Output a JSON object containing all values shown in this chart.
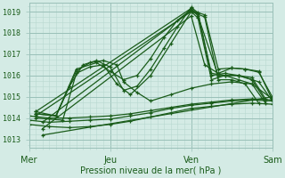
{
  "xlabel": "Pression niveau de la mer( hPa )",
  "bg_color": "#d4ebe5",
  "line_color": "#1a5c1a",
  "grid_minor_color": "#b8d8d0",
  "grid_major_color": "#9ac0b8",
  "tick_label_color": "#1a5c1a",
  "xlabel_color": "#1a5c1a",
  "ylim": [
    1012.6,
    1019.4
  ],
  "xlim": [
    0,
    72
  ],
  "yticks": [
    1013,
    1014,
    1015,
    1016,
    1017,
    1018,
    1019
  ],
  "xtick_positions": [
    0,
    24,
    48,
    72
  ],
  "xtick_labels": [
    "Mer",
    "Jeu",
    "Ven",
    "Sam"
  ],
  "series": [
    {
      "x": [
        0,
        6,
        12,
        18,
        24,
        30,
        36,
        42,
        48,
        54,
        60,
        66,
        72
      ],
      "y": [
        1014.1,
        1014.0,
        1014.0,
        1014.05,
        1014.1,
        1014.2,
        1014.35,
        1014.5,
        1014.65,
        1014.75,
        1014.85,
        1014.9,
        1014.85
      ]
    },
    {
      "x": [
        0,
        6,
        12,
        18,
        24,
        30,
        36,
        42,
        48,
        54,
        60,
        66,
        72
      ],
      "y": [
        1013.9,
        1013.8,
        1013.85,
        1013.9,
        1013.95,
        1014.1,
        1014.25,
        1014.45,
        1014.6,
        1014.7,
        1014.8,
        1014.85,
        1014.8
      ]
    },
    {
      "x": [
        0,
        6,
        12,
        18,
        24,
        30,
        36,
        42,
        48,
        54,
        60,
        66,
        72
      ],
      "y": [
        1013.7,
        1013.6,
        1013.55,
        1013.6,
        1013.7,
        1013.85,
        1014.05,
        1014.25,
        1014.45,
        1014.55,
        1014.65,
        1014.7,
        1014.65
      ]
    },
    {
      "x": [
        2,
        8,
        14,
        20,
        24,
        28,
        32,
        36,
        40,
        44,
        48,
        50,
        54,
        58,
        62,
        66,
        70
      ],
      "y": [
        1014.2,
        1014.1,
        1016.3,
        1016.6,
        1016.2,
        1015.8,
        1016.0,
        1016.8,
        1017.8,
        1018.6,
        1019.1,
        1018.9,
        1016.1,
        1016.0,
        1016.0,
        1015.9,
        1014.9
      ]
    },
    {
      "x": [
        2,
        8,
        12,
        16,
        20,
        24,
        28,
        32,
        36,
        40,
        44,
        48,
        50,
        54,
        58,
        62,
        66,
        70
      ],
      "y": [
        1014.3,
        1014.1,
        1015.5,
        1016.5,
        1016.7,
        1016.4,
        1015.3,
        1015.5,
        1016.3,
        1017.3,
        1018.3,
        1019.2,
        1018.95,
        1016.0,
        1016.1,
        1016.0,
        1015.8,
        1014.8
      ]
    },
    {
      "x": [
        2,
        48,
        50,
        56,
        62,
        68,
        72
      ],
      "y": [
        1014.3,
        1019.15,
        1018.8,
        1016.0,
        1016.0,
        1015.7,
        1014.8
      ]
    },
    {
      "x": [
        2,
        48,
        50,
        54,
        58,
        62,
        66,
        70
      ],
      "y": [
        1014.1,
        1019.0,
        1018.7,
        1015.8,
        1016.0,
        1015.8,
        1015.6,
        1014.7
      ]
    },
    {
      "x": [
        4,
        48,
        52,
        56,
        60,
        64,
        68,
        72
      ],
      "y": [
        1013.8,
        1019.05,
        1018.85,
        1016.3,
        1016.35,
        1016.3,
        1016.2,
        1014.85
      ]
    },
    {
      "x": [
        4,
        48,
        52,
        56,
        60,
        64,
        68,
        72
      ],
      "y": [
        1013.5,
        1018.8,
        1016.5,
        1016.1,
        1016.35,
        1016.3,
        1016.15,
        1015.0
      ]
    },
    {
      "x": [
        4,
        72
      ],
      "y": [
        1013.2,
        1015.0
      ]
    },
    {
      "x": [
        2,
        8,
        14,
        18,
        22,
        26,
        28,
        32,
        36,
        42,
        48,
        54,
        60,
        66,
        72
      ],
      "y": [
        1014.2,
        1014.1,
        1016.2,
        1016.6,
        1016.7,
        1016.5,
        1015.7,
        1015.2,
        1014.8,
        1015.1,
        1015.4,
        1015.6,
        1015.7,
        1015.6,
        1014.9
      ]
    },
    {
      "x": [
        2,
        10,
        14,
        18,
        22,
        26,
        30,
        36,
        42,
        48,
        52,
        56,
        60,
        64,
        68
      ],
      "y": [
        1014.0,
        1013.9,
        1016.1,
        1016.4,
        1016.5,
        1015.6,
        1015.1,
        1016.0,
        1017.5,
        1019.0,
        1018.75,
        1015.8,
        1015.8,
        1015.6,
        1014.7
      ]
    }
  ]
}
